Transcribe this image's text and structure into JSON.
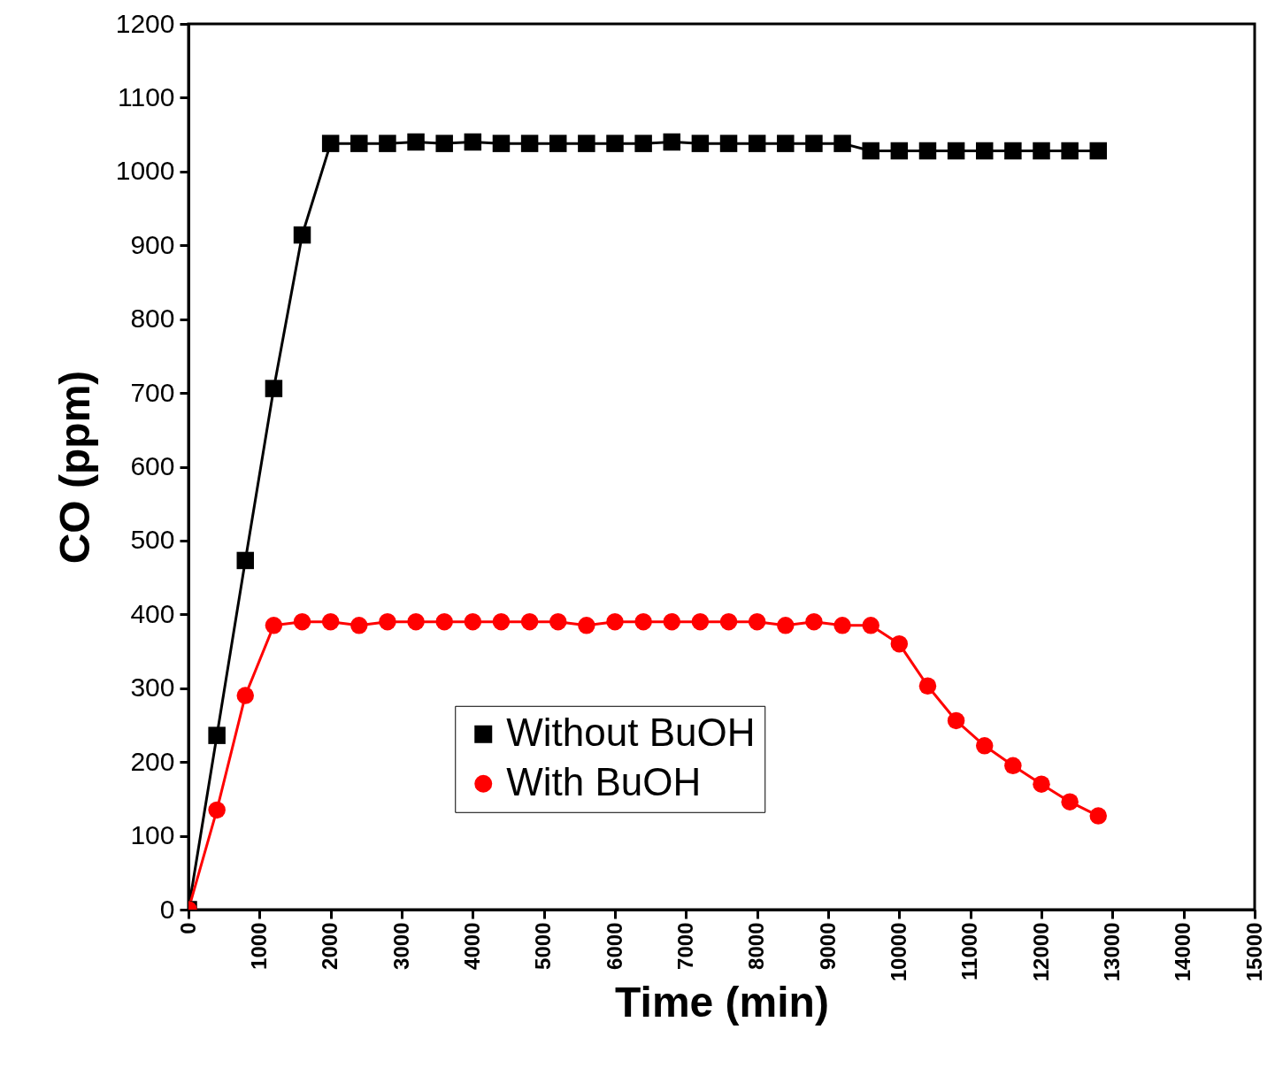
{
  "chart_data": {
    "type": "line",
    "xlabel": "Time (min)",
    "ylabel": "CO (ppm)",
    "x": [
      0,
      400,
      800,
      1200,
      1600,
      2000,
      2400,
      2800,
      3200,
      3600,
      4000,
      4400,
      4800,
      5200,
      5600,
      6000,
      6400,
      6800,
      7200,
      7600,
      8000,
      8400,
      8800,
      9200,
      9600,
      10000,
      10400,
      10800,
      11200,
      11600,
      12000,
      12400,
      12800
    ],
    "series": [
      {
        "name": "Without BuOH",
        "color": "#000000",
        "marker": "square",
        "values": [
          0,
          236,
          473,
          706,
          914,
          1038,
          1038,
          1038,
          1040,
          1038,
          1040,
          1038,
          1038,
          1038,
          1038,
          1038,
          1038,
          1040,
          1038,
          1038,
          1038,
          1038,
          1038,
          1038,
          1028,
          1028,
          1028,
          1028,
          1028,
          1028,
          1028,
          1028,
          1028
        ]
      },
      {
        "name": "With BuOH",
        "color": "#ff0000",
        "marker": "circle",
        "values": [
          0,
          135,
          290,
          385,
          390,
          390,
          385,
          390,
          390,
          390,
          390,
          390,
          390,
          390,
          385,
          390,
          390,
          390,
          390,
          390,
          390,
          385,
          390,
          385,
          385,
          360,
          303,
          256,
          222,
          195,
          170,
          146,
          127
        ]
      }
    ],
    "xlim": [
      0,
      15000
    ],
    "xticks": [
      0,
      1000,
      2000,
      3000,
      4000,
      5000,
      6000,
      7000,
      8000,
      9000,
      10000,
      11000,
      12000,
      13000,
      14000,
      15000
    ],
    "ylim": [
      0,
      1200
    ],
    "yticks": [
      0,
      100,
      200,
      300,
      400,
      500,
      600,
      700,
      800,
      900,
      1000,
      1100,
      1200
    ],
    "legend": "bottom",
    "grid": false,
    "line_style": "solid"
  }
}
